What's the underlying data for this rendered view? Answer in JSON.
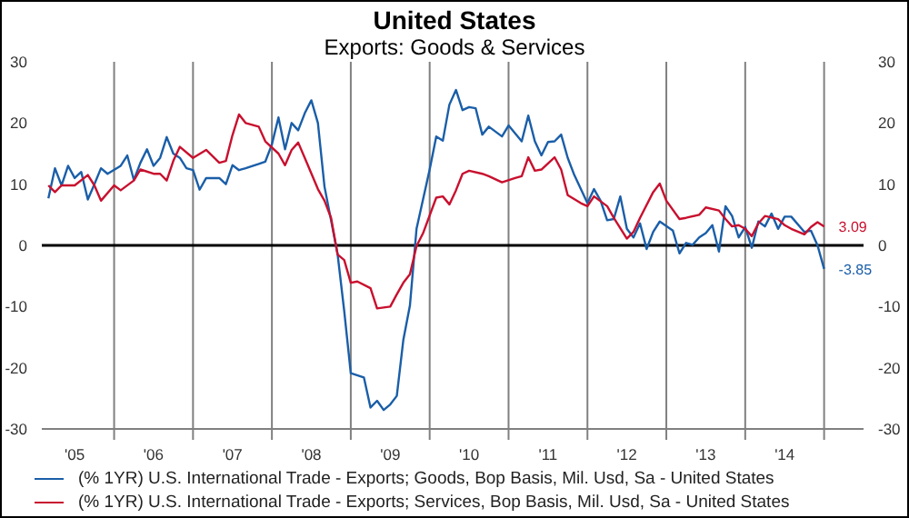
{
  "chart_data": {
    "type": "line",
    "title": "United States",
    "subtitle": "Exports: Goods & Services",
    "xlim": [
      "2005-02",
      "2015-07"
    ],
    "xticks": [
      {
        "value": "2005-07",
        "label": "'05"
      },
      {
        "value": "2006-01",
        "label": null
      },
      {
        "value": "2006-07",
        "label": "'06"
      },
      {
        "value": "2007-01",
        "label": null
      },
      {
        "value": "2007-07",
        "label": "'07"
      },
      {
        "value": "2008-01",
        "label": null
      },
      {
        "value": "2008-07",
        "label": "'08"
      },
      {
        "value": "2009-01",
        "label": null
      },
      {
        "value": "2009-07",
        "label": "'09"
      },
      {
        "value": "2010-01",
        "label": null
      },
      {
        "value": "2010-07",
        "label": "'10"
      },
      {
        "value": "2011-01",
        "label": null
      },
      {
        "value": "2011-07",
        "label": "'11"
      },
      {
        "value": "2012-01",
        "label": null
      },
      {
        "value": "2012-07",
        "label": "'12"
      },
      {
        "value": "2013-01",
        "label": null
      },
      {
        "value": "2013-07",
        "label": "'13"
      },
      {
        "value": "2014-01",
        "label": null
      },
      {
        "value": "2014-07",
        "label": "'14"
      },
      {
        "value": "2015-01",
        "label": null
      }
    ],
    "ylim": [
      -30,
      30
    ],
    "yticks": [
      -30,
      -20,
      -10,
      0,
      10,
      20,
      30
    ],
    "y2lim": [
      -30,
      30
    ],
    "y2ticks": [
      -30,
      -20,
      -10,
      0,
      10,
      20,
      30
    ],
    "grid": true,
    "legend": "bottom",
    "marker": "none",
    "line_style": "solid",
    "ref_lines": [
      {
        "axis": "y",
        "value": 0,
        "color": "#000000"
      }
    ],
    "series": [
      {
        "name": "(% 1YR) U.S. International Trade - Exports; Goods, Bop Basis, Mil. Usd, Sa - United States",
        "color": "#1a5ea8",
        "x": [
          "2005-03",
          "2005-04",
          "2005-05",
          "2005-06",
          "2005-07",
          "2005-08",
          "2005-09",
          "2005-10",
          "2005-11",
          "2005-12",
          "2006-02",
          "2006-03",
          "2006-04",
          "2006-05",
          "2006-06",
          "2006-07",
          "2006-08",
          "2006-09",
          "2006-10",
          "2006-11",
          "2006-12",
          "2007-01",
          "2007-02",
          "2007-03",
          "2007-05",
          "2007-06",
          "2007-07",
          "2007-08",
          "2007-09",
          "2007-11",
          "2007-12",
          "2008-01",
          "2008-02",
          "2008-03",
          "2008-04",
          "2008-05",
          "2008-06",
          "2008-07",
          "2008-08",
          "2008-09",
          "2008-10",
          "2008-11",
          "2008-12",
          "2009-01",
          "2009-03",
          "2009-04",
          "2009-05",
          "2009-06",
          "2009-07",
          "2009-08",
          "2009-09",
          "2009-10",
          "2009-11",
          "2010-01",
          "2010-02",
          "2010-03",
          "2010-04",
          "2010-05",
          "2010-06",
          "2010-07",
          "2010-08",
          "2010-09",
          "2010-10",
          "2010-12",
          "2011-01",
          "2011-03",
          "2011-04",
          "2011-05",
          "2011-06",
          "2011-07",
          "2011-08",
          "2011-09",
          "2011-10",
          "2011-11",
          "2012-01",
          "2012-02",
          "2012-03",
          "2012-04",
          "2012-05",
          "2012-06",
          "2012-07",
          "2012-08",
          "2012-09",
          "2012-10",
          "2012-11",
          "2012-12",
          "2013-02",
          "2013-03",
          "2013-04",
          "2013-05",
          "2013-06",
          "2013-07",
          "2013-08",
          "2013-09",
          "2013-10",
          "2013-11",
          "2013-12",
          "2014-01",
          "2014-02",
          "2014-03",
          "2014-04",
          "2014-05",
          "2014-06",
          "2014-07",
          "2014-08",
          "2014-10",
          "2014-11",
          "2014-12",
          "2015-01"
        ],
        "values": [
          7.7,
          12.6,
          9.8,
          13,
          11,
          12,
          7.5,
          10,
          12.6,
          11.7,
          13,
          14.7,
          10.7,
          13.5,
          15.7,
          13,
          14.3,
          17.7,
          15,
          14.3,
          12.6,
          12.3,
          9.1,
          11,
          11,
          10,
          13.1,
          12.3,
          12.6,
          13.3,
          13.7,
          16.5,
          20.9,
          15.7,
          20,
          18.8,
          21.6,
          23.7,
          20,
          9.6,
          4.1,
          -1.5,
          -10.7,
          -20.9,
          -21.6,
          -26.5,
          -25.4,
          -26.9,
          -26,
          -24.6,
          -15.4,
          -9.8,
          2.7,
          12.4,
          17.8,
          17.1,
          23,
          25.4,
          22.1,
          22.6,
          22.4,
          18.1,
          19.4,
          17.8,
          19.6,
          17,
          21.2,
          17,
          14.7,
          16.9,
          17,
          18.1,
          14.3,
          11.5,
          6.9,
          9.2,
          7.3,
          4.1,
          4.3,
          8,
          2.7,
          1.3,
          3.6,
          -0.6,
          2.2,
          3.9,
          2.4,
          -1.3,
          0.4,
          0.1,
          1.3,
          2,
          3.3,
          -1,
          6.4,
          4.8,
          1.3,
          3,
          -0.4,
          3.9,
          3.1,
          5.2,
          2.7,
          4.7,
          4.7,
          2.2,
          2.4,
          0,
          -3.85
        ],
        "value_labels": [
          null,
          null,
          null,
          null,
          null,
          null,
          null,
          null,
          null,
          null,
          null,
          null,
          null,
          null,
          null,
          null,
          null,
          null,
          null,
          null,
          null,
          null,
          null,
          null,
          null,
          null,
          null,
          null,
          null,
          null,
          null,
          null,
          null,
          null,
          null,
          null,
          null,
          null,
          null,
          null,
          null,
          null,
          null,
          null,
          null,
          null,
          null,
          null,
          null,
          null,
          null,
          null,
          null,
          null,
          null,
          null,
          null,
          null,
          null,
          null,
          null,
          null,
          null,
          null,
          null,
          null,
          null,
          null,
          null,
          null,
          null,
          null,
          null,
          null,
          null,
          null,
          null,
          null,
          null,
          null,
          null,
          null,
          null,
          null,
          null,
          null,
          null,
          null,
          null,
          null,
          null,
          null,
          null,
          null,
          null,
          null,
          null,
          null,
          null,
          null,
          null,
          null,
          null,
          null,
          null,
          null,
          null,
          null,
          "-3.85"
        ]
      },
      {
        "name": "(% 1YR) U.S. International Trade - Exports; Services, Bop Basis, Mil. Usd, Sa - United States",
        "color": "#c8102e",
        "x": [
          "2005-03",
          "2005-04",
          "2005-05",
          "2005-07",
          "2005-09",
          "2005-10",
          "2005-11",
          "2006-01",
          "2006-02",
          "2006-04",
          "2006-05",
          "2006-07",
          "2006-08",
          "2006-09",
          "2006-10",
          "2006-11",
          "2007-01",
          "2007-03",
          "2007-05",
          "2007-06",
          "2007-07",
          "2007-08",
          "2007-09",
          "2007-11",
          "2007-12",
          "2008-02",
          "2008-03",
          "2008-04",
          "2008-05",
          "2008-06",
          "2008-08",
          "2008-09",
          "2008-10",
          "2008-11",
          "2008-12",
          "2009-01",
          "2009-02",
          "2009-04",
          "2009-05",
          "2009-07",
          "2009-08",
          "2009-09",
          "2009-10",
          "2009-11",
          "2009-12",
          "2010-02",
          "2010-03",
          "2010-04",
          "2010-05",
          "2010-06",
          "2010-07",
          "2010-09",
          "2010-10",
          "2010-12",
          "2011-02",
          "2011-03",
          "2011-04",
          "2011-05",
          "2011-06",
          "2011-08",
          "2011-09",
          "2011-10",
          "2011-12",
          "2012-01",
          "2012-02",
          "2012-04",
          "2012-05",
          "2012-07",
          "2012-08",
          "2012-09",
          "2012-11",
          "2012-12",
          "2013-01",
          "2013-03",
          "2013-04",
          "2013-06",
          "2013-07",
          "2013-09",
          "2013-10",
          "2013-11",
          "2013-12",
          "2014-01",
          "2014-02",
          "2014-03",
          "2014-04",
          "2014-06",
          "2014-07",
          "2014-08",
          "2014-10",
          "2014-11",
          "2014-12",
          "2015-01"
        ],
        "values": [
          9.8,
          8.7,
          9.8,
          9.8,
          11.5,
          9.8,
          7.3,
          9.8,
          9,
          10.6,
          12.4,
          11.7,
          11.7,
          10.6,
          13.8,
          16.1,
          14.3,
          15.6,
          13.5,
          13.8,
          18,
          21.4,
          20,
          19.4,
          17,
          15,
          13.1,
          15.6,
          16.8,
          14.3,
          9.2,
          7.3,
          4.5,
          -1.5,
          -2.4,
          -6.1,
          -5.9,
          -7,
          -10.3,
          -10,
          -8,
          -6.1,
          -4.7,
          -0.1,
          2,
          7.8,
          8,
          6.7,
          9,
          11.7,
          12.2,
          11.7,
          11.3,
          10.3,
          11,
          11.3,
          14.4,
          12.2,
          12.4,
          14.4,
          12.4,
          8.2,
          6.9,
          6.4,
          8,
          6.4,
          4.5,
          1.1,
          2.2,
          4.5,
          8.7,
          10.1,
          7.3,
          4.3,
          4.5,
          5,
          6.2,
          5.7,
          4.3,
          3.1,
          3.3,
          2.7,
          1.5,
          3.6,
          4.8,
          4.3,
          3.3,
          2.7,
          1.8,
          3,
          3.8,
          3.09
        ],
        "value_labels": [
          null,
          null,
          null,
          null,
          null,
          null,
          null,
          null,
          null,
          null,
          null,
          null,
          null,
          null,
          null,
          null,
          null,
          null,
          null,
          null,
          null,
          null,
          null,
          null,
          null,
          null,
          null,
          null,
          null,
          null,
          null,
          null,
          null,
          null,
          null,
          null,
          null,
          null,
          null,
          null,
          null,
          null,
          null,
          null,
          null,
          null,
          null,
          null,
          null,
          null,
          null,
          null,
          null,
          null,
          null,
          null,
          null,
          null,
          null,
          null,
          null,
          null,
          null,
          null,
          null,
          null,
          null,
          null,
          null,
          null,
          null,
          null,
          null,
          null,
          null,
          null,
          null,
          null,
          null,
          null,
          null,
          null,
          null,
          null,
          null,
          null,
          null,
          null,
          null,
          null,
          null,
          "3.09"
        ]
      }
    ]
  }
}
